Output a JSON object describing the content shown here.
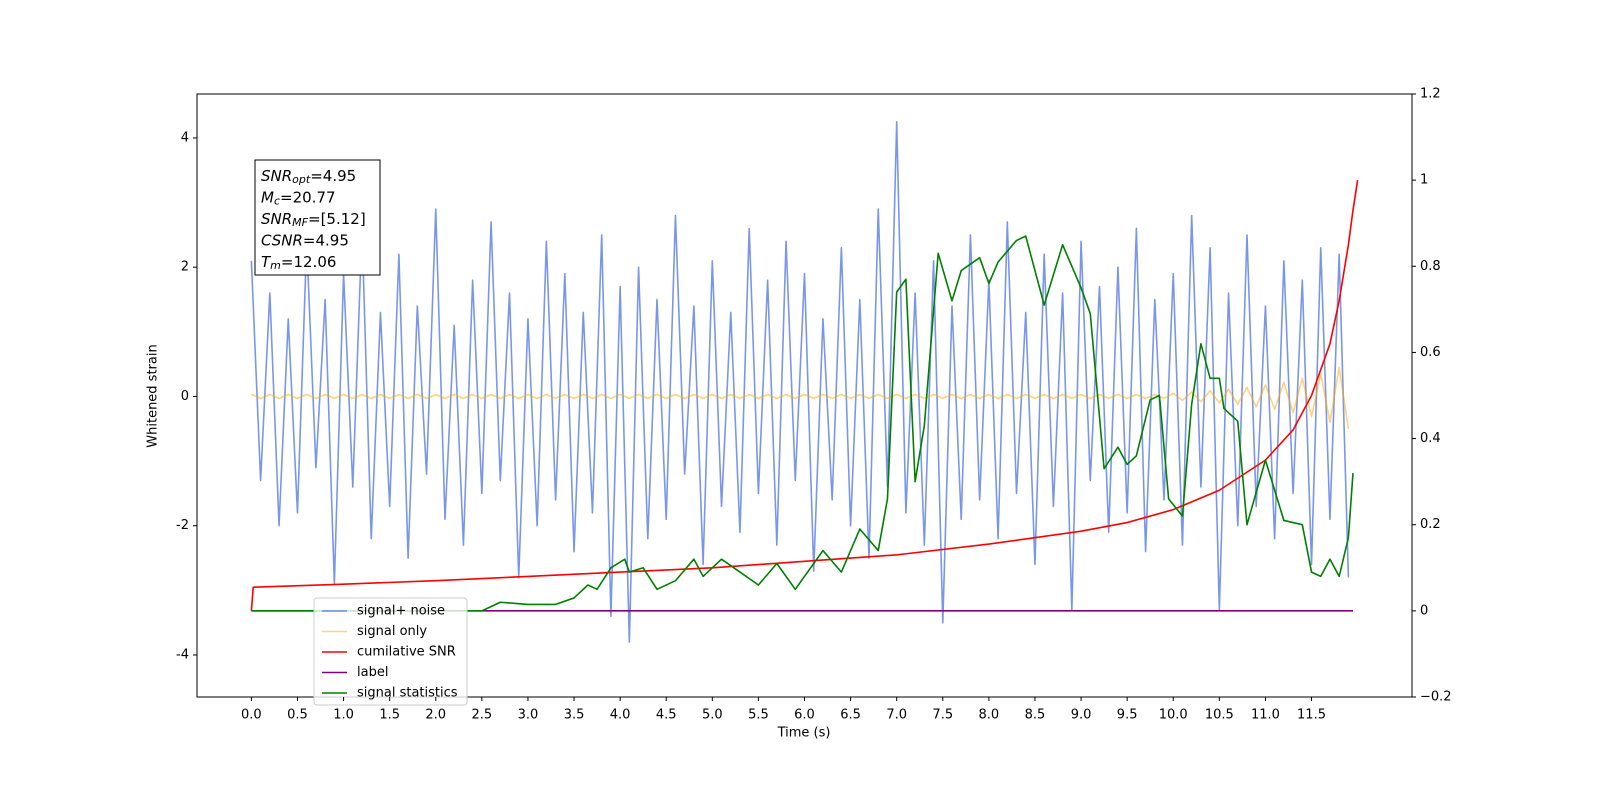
{
  "chart_data": {
    "type": "line",
    "xlabel": "Time (s)",
    "ylabel": "Whitened strain",
    "xlim": [
      -0.59,
      12.59
    ],
    "ylim": [
      -4.65,
      4.68
    ],
    "y2lim": [
      -0.2,
      1.2
    ],
    "xticks": [
      {
        "value": 0,
        "label": "0.0"
      },
      0.5,
      {
        "value": 1,
        "label": "1.0"
      },
      1.5,
      {
        "value": 2,
        "label": "2.0"
      },
      2.5,
      {
        "value": 3,
        "label": "3.0"
      },
      3.5,
      {
        "value": 4,
        "label": "4.0"
      },
      4.5,
      {
        "value": 5,
        "label": "5.0"
      },
      5.5,
      {
        "value": 6,
        "label": "6.0"
      },
      6.5,
      {
        "value": 7,
        "label": "7.0"
      },
      7.5,
      {
        "value": 8,
        "label": "8.0"
      },
      8.5,
      {
        "value": 9,
        "label": "9.0"
      },
      9.5,
      {
        "value": 10,
        "label": "10.0"
      },
      10.5,
      {
        "value": 11,
        "label": "11.0"
      },
      11.5
    ],
    "yticks": [
      -4,
      -2,
      0,
      2,
      4
    ],
    "y2ticks": [
      {
        "value": -0.2,
        "label": "−0.2"
      },
      0.0,
      0.2,
      0.4,
      0.6,
      0.8,
      1.0,
      1.2
    ],
    "legend": "lower left",
    "x": [
      0,
      0.1,
      0.2,
      0.3,
      0.4,
      0.5,
      0.6,
      0.7,
      0.8,
      0.9,
      1,
      1.1,
      1.2,
      1.3,
      1.4,
      1.5,
      1.6,
      1.7,
      1.8,
      1.9,
      2,
      2.1,
      2.2,
      2.3,
      2.4,
      2.5,
      2.6,
      2.7,
      2.8,
      2.9,
      3,
      3.1,
      3.2,
      3.3,
      3.4,
      3.5,
      3.6,
      3.7,
      3.8,
      3.9,
      4,
      4.1,
      4.2,
      4.3,
      4.4,
      4.5,
      4.6,
      4.7,
      4.8,
      4.9,
      5,
      5.1,
      5.2,
      5.3,
      5.4,
      5.5,
      5.6,
      5.7,
      5.8,
      5.9,
      6,
      6.1,
      6.2,
      6.3,
      6.4,
      6.5,
      6.6,
      6.7,
      6.8,
      6.9,
      7,
      7.1,
      7.2,
      7.3,
      7.4,
      7.5,
      7.6,
      7.7,
      7.8,
      7.9,
      8,
      8.1,
      8.2,
      8.3,
      8.4,
      8.5,
      8.6,
      8.7,
      8.8,
      8.9,
      9,
      9.1,
      9.2,
      9.3,
      9.4,
      9.5,
      9.6,
      9.7,
      9.8,
      9.9,
      10,
      10.1,
      10.2,
      10.3,
      10.4,
      10.5,
      10.6,
      10.7,
      10.8,
      10.9,
      11,
      11.1,
      11.2,
      11.3,
      11.4,
      11.5,
      11.6,
      11.7,
      11.8,
      11.9
    ],
    "series": [
      {
        "name": "signal+ noise",
        "color": "#4169e1",
        "alpha": 0.7,
        "values": [
          2.1,
          -1.3,
          1.6,
          -2.0,
          1.2,
          -1.8,
          2.4,
          -1.1,
          1.5,
          -2.9,
          1.9,
          -1.4,
          2.6,
          -2.2,
          1.3,
          -1.7,
          2.2,
          -2.5,
          1.4,
          -1.2,
          2.9,
          -1.9,
          1.1,
          -2.3,
          1.8,
          -1.5,
          2.7,
          -1.3,
          1.6,
          -2.8,
          1.2,
          -2.0,
          2.4,
          -1.6,
          1.9,
          -2.4,
          1.3,
          -1.8,
          2.5,
          -3.4,
          1.7,
          -3.8,
          2.0,
          -2.2,
          1.5,
          -1.9,
          2.8,
          -1.2,
          1.4,
          -2.6,
          2.1,
          -1.7,
          1.3,
          -2.1,
          2.6,
          -1.5,
          1.8,
          -2.3,
          2.4,
          -1.3,
          1.9,
          -2.7,
          1.2,
          -1.6,
          2.3,
          -2.0,
          1.5,
          -2.5,
          2.9,
          -1.4,
          4.25,
          -1.8,
          1.6,
          -2.3,
          2.1,
          -3.5,
          1.4,
          -1.9,
          2.5,
          -1.6,
          1.8,
          -2.2,
          2.7,
          -1.5,
          1.3,
          -2.6,
          2.2,
          -1.7,
          1.6,
          -3.3,
          2.4,
          -1.3,
          1.7,
          -2.1,
          2.0,
          -1.8,
          2.6,
          -2.4,
          1.5,
          -1.6,
          1.9,
          -2.3,
          2.8,
          -1.4,
          2.3,
          -3.3,
          1.6,
          -2.0,
          2.5,
          -1.7,
          1.4,
          -2.2,
          2.1,
          -1.5,
          1.8,
          -2.6,
          2.3,
          -1.9,
          2.2,
          -2.8
        ]
      },
      {
        "name": "signal only",
        "color": "#ffa500",
        "alpha": 0.5,
        "values": [
          0.03,
          -0.03,
          0.03,
          -0.03,
          0.03,
          -0.03,
          0.03,
          -0.03,
          0.03,
          -0.03,
          0.03,
          -0.03,
          0.03,
          -0.03,
          0.03,
          -0.03,
          0.03,
          -0.03,
          0.03,
          -0.03,
          0.03,
          -0.03,
          0.03,
          -0.03,
          0.03,
          -0.03,
          0.03,
          -0.03,
          0.03,
          -0.03,
          0.03,
          -0.03,
          0.03,
          -0.03,
          0.03,
          -0.03,
          0.03,
          -0.03,
          0.03,
          -0.03,
          0.03,
          -0.03,
          0.03,
          -0.03,
          0.03,
          -0.03,
          0.03,
          -0.03,
          0.03,
          -0.03,
          0.03,
          -0.03,
          0.03,
          -0.03,
          0.03,
          -0.03,
          0.03,
          -0.03,
          0.03,
          -0.03,
          0.03,
          -0.03,
          0.03,
          -0.03,
          0.03,
          -0.03,
          0.03,
          -0.03,
          0.03,
          -0.03,
          0.03,
          -0.03,
          0.03,
          -0.03,
          0.03,
          -0.03,
          0.03,
          -0.03,
          0.03,
          -0.03,
          0.03,
          -0.03,
          0.03,
          -0.03,
          0.03,
          -0.03,
          0.03,
          -0.03,
          0.03,
          -0.03,
          0.03,
          -0.03,
          0.03,
          -0.03,
          0.03,
          -0.03,
          0.03,
          -0.03,
          0.03,
          -0.03,
          0.05,
          -0.06,
          0.07,
          -0.08,
          0.09,
          -0.1,
          0.11,
          -0.12,
          0.14,
          -0.16,
          0.18,
          -0.2,
          0.22,
          -0.25,
          0.28,
          -0.31,
          0.35,
          -0.4,
          0.45,
          -0.5
        ]
      },
      {
        "name": "cumilative SNR",
        "color": "#ff0000",
        "alpha": 1,
        "axis": "y2",
        "x": [
          0,
          0.02,
          1,
          2,
          3,
          4,
          5,
          6,
          7,
          8,
          9,
          9.5,
          10,
          10.5,
          11,
          11.3,
          11.5,
          11.7,
          11.8,
          11.9,
          11.95,
          12.0
        ],
        "values": [
          0,
          0.055,
          0.062,
          0.07,
          0.08,
          0.09,
          0.1,
          0.115,
          0.13,
          0.155,
          0.185,
          0.205,
          0.235,
          0.28,
          0.35,
          0.42,
          0.5,
          0.62,
          0.72,
          0.85,
          0.93,
          1.0
        ]
      },
      {
        "name": "label",
        "color": "#800080",
        "alpha": 1,
        "axis": "y2",
        "x": [
          0,
          11.95
        ],
        "values": [
          0,
          0
        ]
      },
      {
        "name": "signal statistics",
        "color": "#008000",
        "alpha": 1,
        "axis": "y2",
        "x": [
          0,
          2.5,
          2.7,
          3.0,
          3.3,
          3.5,
          3.65,
          3.75,
          3.9,
          4.05,
          4.1,
          4.25,
          4.4,
          4.6,
          4.8,
          4.9,
          5.1,
          5.3,
          5.5,
          5.7,
          5.9,
          6.1,
          6.2,
          6.4,
          6.6,
          6.8,
          6.9,
          7.0,
          7.1,
          7.2,
          7.3,
          7.45,
          7.6,
          7.7,
          7.9,
          8.0,
          8.1,
          8.3,
          8.4,
          8.6,
          8.8,
          9.0,
          9.1,
          9.25,
          9.4,
          9.5,
          9.6,
          9.75,
          9.85,
          9.95,
          10.1,
          10.2,
          10.3,
          10.4,
          10.5,
          10.55,
          10.7,
          10.8,
          11.0,
          11.2,
          11.4,
          11.5,
          11.6,
          11.7,
          11.8,
          11.9,
          11.95
        ],
        "values": [
          0,
          0,
          0.02,
          0.015,
          0.015,
          0.03,
          0.06,
          0.05,
          0.1,
          0.12,
          0.09,
          0.1,
          0.05,
          0.07,
          0.12,
          0.08,
          0.12,
          0.09,
          0.06,
          0.11,
          0.05,
          0.11,
          0.14,
          0.09,
          0.19,
          0.14,
          0.26,
          0.74,
          0.77,
          0.3,
          0.43,
          0.83,
          0.72,
          0.79,
          0.82,
          0.76,
          0.81,
          0.86,
          0.87,
          0.71,
          0.85,
          0.75,
          0.69,
          0.33,
          0.38,
          0.34,
          0.36,
          0.49,
          0.5,
          0.26,
          0.22,
          0.48,
          0.62,
          0.54,
          0.54,
          0.47,
          0.44,
          0.2,
          0.35,
          0.21,
          0.2,
          0.09,
          0.08,
          0.12,
          0.08,
          0.17,
          0.32
        ]
      }
    ],
    "annotation": [
      {
        "text": "SNR",
        "sub": "opt",
        "rest": "=4.95"
      },
      {
        "text": "M",
        "sub": "c",
        "rest": "=20.77"
      },
      {
        "text": "SNR",
        "sub": "MF",
        "rest": "=[5.12]"
      },
      {
        "text": "CSNR",
        "rest": "=4.95"
      },
      {
        "text": "T",
        "sub": "m",
        "rest": "=12.06"
      }
    ]
  }
}
